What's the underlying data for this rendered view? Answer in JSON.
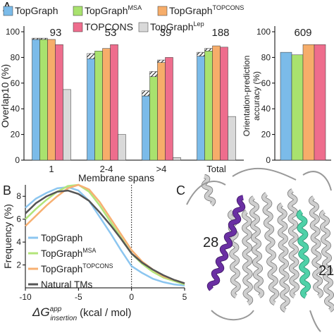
{
  "panel_labels": [
    "A",
    "B",
    "C"
  ],
  "chart_data": [
    {
      "type": "bar",
      "ylabel": "Overlap10 (%)",
      "xlabel": "Membrane spans",
      "categories": [
        "1",
        "2-4",
        ">4",
        "Total"
      ],
      "group_counts": [
        93,
        53,
        39,
        188
      ],
      "ylim": [
        0,
        100
      ],
      "yticks": [
        0,
        20,
        40,
        60,
        80,
        100
      ],
      "series": [
        {
          "name": "TopGraph",
          "color": "#7bbbe9",
          "values": [
            94,
            79,
            50,
            81
          ],
          "hatch_values": [
            1,
            4,
            4,
            3
          ]
        },
        {
          "name": "TopGraph",
          "name_sup": "MSA",
          "color": "#a9e26e",
          "values": [
            94,
            85,
            65,
            85
          ],
          "hatch_values": [
            1,
            null,
            4,
            2
          ]
        },
        {
          "name": "TopGraph",
          "name_sup": "TOPCONS",
          "color": "#f6ad6a",
          "values": [
            94,
            87,
            76,
            89
          ],
          "hatch_values": [
            null,
            null,
            2,
            null
          ]
        },
        {
          "name": "TOPCONS",
          "color": "#ee6d8d",
          "values": [
            90,
            90,
            80,
            88
          ],
          "hatch_values": [
            null,
            null,
            null,
            null
          ]
        },
        {
          "name": "TopGraph",
          "name_sup": "Lep",
          "color": "#d9d9d9",
          "values": [
            55,
            20,
            2,
            34
          ],
          "hatch_values": [
            null,
            null,
            null,
            null
          ]
        }
      ]
    },
    {
      "type": "bar",
      "ylabel_lines": [
        "Orientation-prediction",
        "accuracy (%)"
      ],
      "group_counts": [
        609
      ],
      "ylim": [
        0,
        100
      ],
      "yticks": [
        0,
        20,
        40,
        60,
        80,
        100
      ],
      "series": [
        {
          "color": "#7bbbe9",
          "values": [
            84
          ]
        },
        {
          "color": "#a9e26e",
          "values": [
            82
          ]
        },
        {
          "color": "#f6ad6a",
          "values": [
            90
          ]
        },
        {
          "color": "#ee6d8d",
          "values": [
            90
          ]
        }
      ]
    },
    {
      "type": "line",
      "ylabel": "Frequency (%)",
      "xlabel": {
        "symbol": "ΔG",
        "sup": "app",
        "sub": "insertion",
        "unit": "(kcal / mol)"
      },
      "xlim": [
        -10,
        5
      ],
      "xticks": [
        -10,
        -5,
        0,
        5
      ],
      "ylim": [
        0,
        9
      ],
      "yticks": [
        2,
        4,
        6,
        8
      ],
      "vline": 0,
      "x": [
        -10,
        -9,
        -8,
        -7,
        -6,
        -5,
        -4,
        -3,
        -2,
        -1,
        0,
        1,
        2,
        3,
        4,
        5
      ],
      "series": [
        {
          "name": "TopGraph",
          "color": "#8cc6f0",
          "values": [
            7.0,
            7.8,
            8.3,
            8.7,
            8.8,
            8.5,
            7.6,
            6.2,
            4.8,
            3.3,
            1.9,
            1.3,
            0.8,
            0.5,
            0.3,
            0.2
          ]
        },
        {
          "name": "TopGraph",
          "name_sup": "MSA",
          "color": "#b3e57a",
          "values": [
            6.0,
            6.9,
            7.7,
            8.4,
            8.9,
            9.0,
            8.4,
            7.2,
            5.8,
            4.4,
            3.0,
            2.1,
            1.4,
            0.9,
            0.6,
            0.3
          ]
        },
        {
          "name": "TopGraph",
          "name_sup": "TOPCONS",
          "color": "#f7b072",
          "values": [
            5.4,
            6.3,
            7.2,
            8.0,
            8.7,
            9.0,
            8.6,
            7.5,
            6.1,
            4.7,
            3.3,
            2.3,
            1.6,
            1.0,
            0.7,
            0.4
          ]
        },
        {
          "name": "Natural TMs",
          "color": "#555555",
          "values": [
            6.5,
            7.4,
            8.0,
            8.4,
            8.5,
            8.2,
            7.6,
            6.6,
            5.5,
            4.3,
            3.0,
            2.2,
            1.6,
            1.1,
            0.7,
            0.4
          ]
        }
      ]
    }
  ],
  "structure": {
    "helix_labels": [
      {
        "text": "28",
        "color": "#6a2fa3"
      },
      {
        "text": "21",
        "color": "#4fd1a8"
      }
    ]
  }
}
